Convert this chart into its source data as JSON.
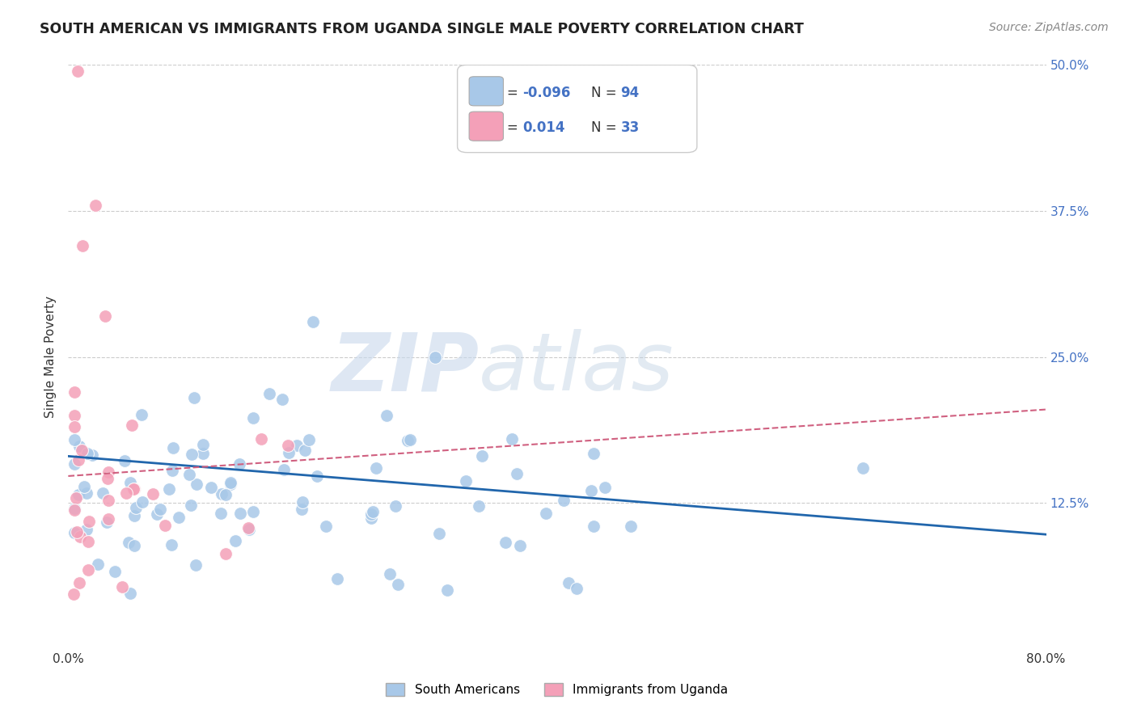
{
  "title": "SOUTH AMERICAN VS IMMIGRANTS FROM UGANDA SINGLE MALE POVERTY CORRELATION CHART",
  "source": "Source: ZipAtlas.com",
  "ylabel": "Single Male Poverty",
  "xlim": [
    0.0,
    0.8
  ],
  "ylim": [
    0.0,
    0.5
  ],
  "grid_color": "#cccccc",
  "background_color": "#ffffff",
  "watermark_zip": "ZIP",
  "watermark_atlas": "atlas",
  "blue_color": "#a8c8e8",
  "pink_color": "#f4a0b8",
  "blue_line_color": "#2166ac",
  "pink_line_color": "#d06080",
  "legend_R1": "-0.096",
  "legend_N1": "94",
  "legend_R2": "0.014",
  "legend_N2": "33",
  "legend_label1": "South Americans",
  "legend_label2": "Immigrants from Uganda",
  "blue_line_x0": 0.0,
  "blue_line_y0": 0.165,
  "blue_line_x1": 0.8,
  "blue_line_y1": 0.098,
  "pink_line_x0": 0.0,
  "pink_line_y0": 0.148,
  "pink_line_x1": 0.8,
  "pink_line_y1": 0.205
}
